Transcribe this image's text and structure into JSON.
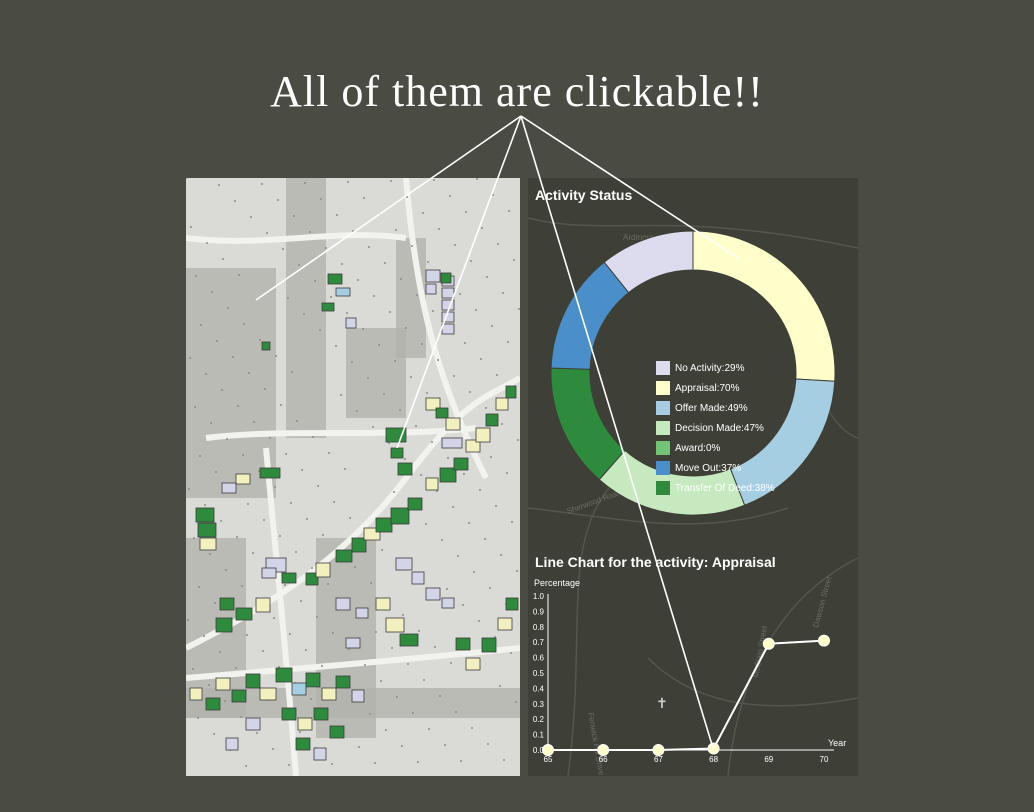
{
  "headline": "All of them are clickable!!",
  "dashboard": {
    "activity_title": "Activity Status",
    "line_title": "Line Chart for the activity: Appraisal"
  },
  "chart_data": [
    {
      "type": "pie",
      "title": "Activity Status",
      "legend": [
        {
          "label": "No Activity:29%",
          "color": "#dcdcee"
        },
        {
          "label": "Appraisal:70%",
          "color": "#ffffcc"
        },
        {
          "label": "Offer Made:49%",
          "color": "#a6cee3"
        },
        {
          "label": "Decision Made:47%",
          "color": "#c7e9c0"
        },
        {
          "label": "Award:0%",
          "color": "#74c476"
        },
        {
          "label": "Move Out:37%",
          "color": "#4a8fc9"
        },
        {
          "label": "Transfer Of Deed:38%",
          "color": "#2e8b3d"
        }
      ],
      "slices": [
        {
          "name": "Appraisal",
          "value": 70,
          "color": "#ffffcc"
        },
        {
          "name": "Offer Made",
          "value": 49,
          "color": "#a6cee3"
        },
        {
          "name": "Decision Made",
          "value": 47,
          "color": "#c7e9c0"
        },
        {
          "name": "Award",
          "value": 0,
          "color": "#74c476"
        },
        {
          "name": "Transfer Of Deed",
          "value": 38,
          "color": "#2e8b3d"
        },
        {
          "name": "Move Out",
          "value": 37,
          "color": "#4a8fc9"
        },
        {
          "name": "No Activity",
          "value": 29,
          "color": "#dcdcee"
        }
      ]
    },
    {
      "type": "line",
      "title": "Line Chart for the activity: Appraisal",
      "ylabel": "Percentage",
      "xlabel": "Year",
      "x": [
        65,
        66,
        67,
        68,
        69,
        70
      ],
      "y": [
        0.0,
        0.0,
        0.0,
        0.01,
        0.69,
        0.71
      ],
      "ylim": [
        0,
        1.0
      ],
      "yticks": [
        "1.0",
        "0.9",
        "0.8",
        "0.7",
        "0.6",
        "0.5",
        "0.4",
        "0.3",
        "0.2",
        "0.1",
        "0.0"
      ],
      "xticks": [
        "65",
        "66",
        "67",
        "68",
        "69",
        "70"
      ],
      "line_color": "#ffffff",
      "point_color": "#ffffcc"
    }
  ],
  "basemap_labels": {
    "road1": "Sherwood Road",
    "road2": "Fenwick Hill Drive",
    "road3": "Dawson Street",
    "road4": "McClain Street",
    "road5": "Ardmore"
  },
  "colors": {
    "background": "#4a4b42",
    "parcel_green": "#2e8b3d",
    "parcel_yellow": "#f3f0c0",
    "parcel_lavender": "#d4d4e8",
    "parcel_blue": "#a6cee3"
  }
}
